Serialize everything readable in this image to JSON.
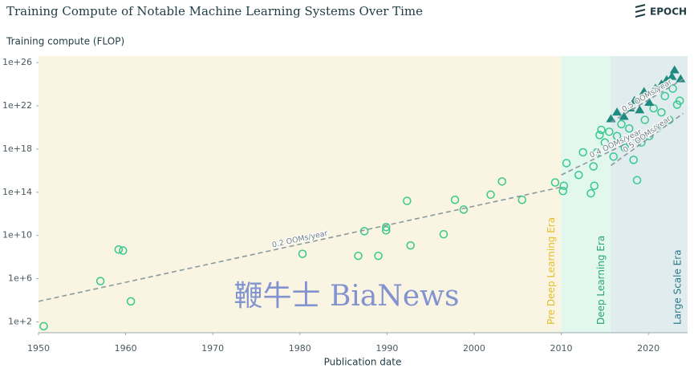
{
  "chart_data": {
    "type": "scatter",
    "title": "Training Compute of Notable Machine Learning Systems Over Time",
    "brand": "EPOCH",
    "y_label": "Training compute (FLOP)",
    "x_label": "Publication date",
    "watermark": "鞭牛士 BiaNews",
    "yscale": "log",
    "xlim": [
      1950,
      2024.5
    ],
    "ylim": [
      10,
      4e+26
    ],
    "xticks": [
      1950,
      1960,
      1970,
      1980,
      1990,
      2000,
      2010,
      2020
    ],
    "yticks": [
      {
        "value": 100.0,
        "label": "1e+2"
      },
      {
        "value": 1000000.0,
        "label": "1e+6"
      },
      {
        "value": 10000000000.0,
        "label": "1e+10"
      },
      {
        "value": 100000000000000.0,
        "label": "1e+14"
      },
      {
        "value": 1e+18,
        "label": "1e+18"
      },
      {
        "value": 1e+22,
        "label": "1e+22"
      },
      {
        "value": 1e+26,
        "label": "1e+26"
      }
    ],
    "eras": [
      {
        "label": "Pre Deep Learning Era",
        "start": 1950,
        "end": 2010,
        "color": "#faf5e2",
        "label_color": "#e3bf2a"
      },
      {
        "label": "Deep Learning Era",
        "start": 2010,
        "end": 2015.7,
        "color": "#e2f7ee",
        "label_color": "#2aa47a"
      },
      {
        "label": "Large Scale Era",
        "start": 2015.7,
        "end": 2024.5,
        "color": "#e1ecee",
        "label_color": "#2b7a8a"
      }
    ],
    "trend_lines": [
      {
        "label": "0.2 OOMs/year",
        "x": [
          1950,
          2010
        ],
        "y": [
          8000.0,
          300000000000000.0
        ]
      },
      {
        "label": "0.4 OOMs/year",
        "x": [
          2010,
          2022.5
        ],
        "y": [
          4000000000000000.0,
          3e+20
        ]
      },
      {
        "label": "0.5 OOMs/year",
        "x": [
          2015.7,
          2024
        ],
        "y": [
          3e+20,
          3e+24
        ]
      },
      {
        "label": "0.5 OOMs/year",
        "x": [
          2015.7,
          2024
        ],
        "y": [
          3e+16,
          2e+21
        ]
      }
    ],
    "series": [
      {
        "marker": "circle",
        "color": "#35c98d",
        "x": [
          1950.6,
          1957.1,
          1959.2,
          1959.7,
          1960.6,
          1980.3,
          1986.7,
          1987.4,
          1989.0,
          1989.9,
          1989.9,
          1992.3,
          1992.7,
          1996.5,
          1997.8,
          1998.8,
          2001.9,
          2003.2,
          2005.5,
          2009.3,
          2010.2,
          2010.3,
          2010.6,
          2012.0,
          2012.5,
          2013.4,
          2013.7,
          2013.8,
          2014.1,
          2014.4,
          2014.6,
          2015.0,
          2015.5,
          2016.0,
          2016.4,
          2016.9,
          2017.3,
          2017.8,
          2018.3,
          2018.7,
          2019.2,
          2019.6,
          2020.1,
          2020.6,
          2021.0,
          2021.5,
          2021.9,
          2022.4,
          2022.8,
          2023.3,
          2023.6
        ],
        "values": [
          40,
          600000.0,
          500000000.0,
          400000000.0,
          8000.0,
          200000000.0,
          130000000.0,
          25000000000.0,
          130000000.0,
          60000000000.0,
          30000000000.0,
          16000000000000.0,
          1200000000.0,
          13000000000.0,
          20000000000000.0,
          2500000000000.0,
          60000000000000.0,
          1000000000000000.0,
          20000000000000.0,
          800000000000000.0,
          130000000000000.0,
          400000000000000.0,
          5e+16,
          4000000000000000.0,
          5e+17,
          80000000000000.0,
          2.5e+16,
          400000000000000.0,
          5e+17,
          2e+19,
          6e+19,
          4e+18,
          4e+19,
          2e+17,
          1.6e+19,
          2e+20,
          1.3e+18,
          8e+19,
          1e+17,
          1300000000000000.0,
          4e+18,
          5e+20,
          1.6e+19,
          6e+21,
          8e+19,
          2.5e+21,
          8e+22,
          5e+20,
          4e+23,
          1.3e+22,
          3e+22
        ]
      },
      {
        "marker": "triangle",
        "color": "#1f8a7f",
        "x": [
          2015.7,
          2016.4,
          2017.2,
          2017.9,
          2018.4,
          2019.0,
          2019.5,
          2020.1,
          2020.8,
          2021.5,
          2022.1,
          2022.7,
          2023.0,
          2023.7
        ],
        "values": [
          6e+20,
          2.5e+21,
          1e+21,
          6e+21,
          3e+22,
          4e+21,
          2e+23,
          2e+22,
          4e+23,
          1e+24,
          2.5e+24,
          5e+24,
          2e+25,
          3e+24
        ]
      }
    ]
  }
}
